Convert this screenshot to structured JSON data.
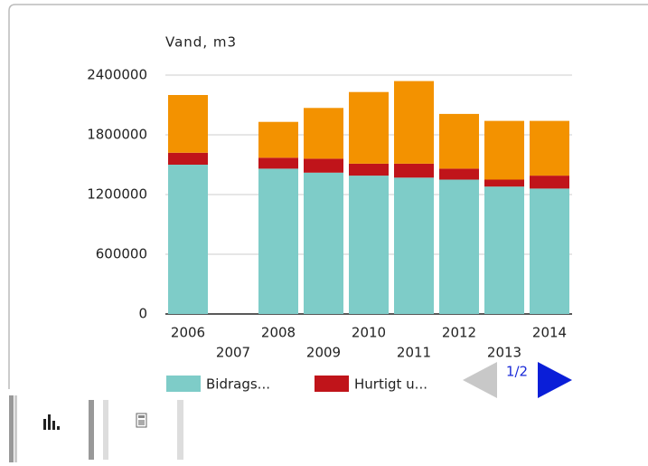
{
  "chart_data": {
    "type": "bar",
    "stacked": true,
    "title": "Vand, m3",
    "categories": [
      "2006",
      "2007",
      "2008",
      "2009",
      "2010",
      "2011",
      "2012",
      "2013",
      "2014"
    ],
    "series": [
      {
        "name": "Bidrags...",
        "color": "#7eccc8",
        "values": [
          1500000,
          null,
          1460000,
          1420000,
          1390000,
          1370000,
          1350000,
          1280000,
          1260000
        ]
      },
      {
        "name": "Hurtigt u...",
        "color": "#c0141a",
        "values": [
          120000,
          null,
          110000,
          140000,
          120000,
          140000,
          110000,
          70000,
          130000
        ]
      },
      {
        "color": "#f39200",
        "values": [
          580000,
          null,
          360000,
          510000,
          720000,
          830000,
          550000,
          590000,
          550000
        ]
      }
    ],
    "ylim": [
      0,
      2400000
    ],
    "yticks": [
      0,
      600000,
      1200000,
      1800000,
      2400000
    ],
    "grid": true,
    "legend_page": "1/2"
  }
}
